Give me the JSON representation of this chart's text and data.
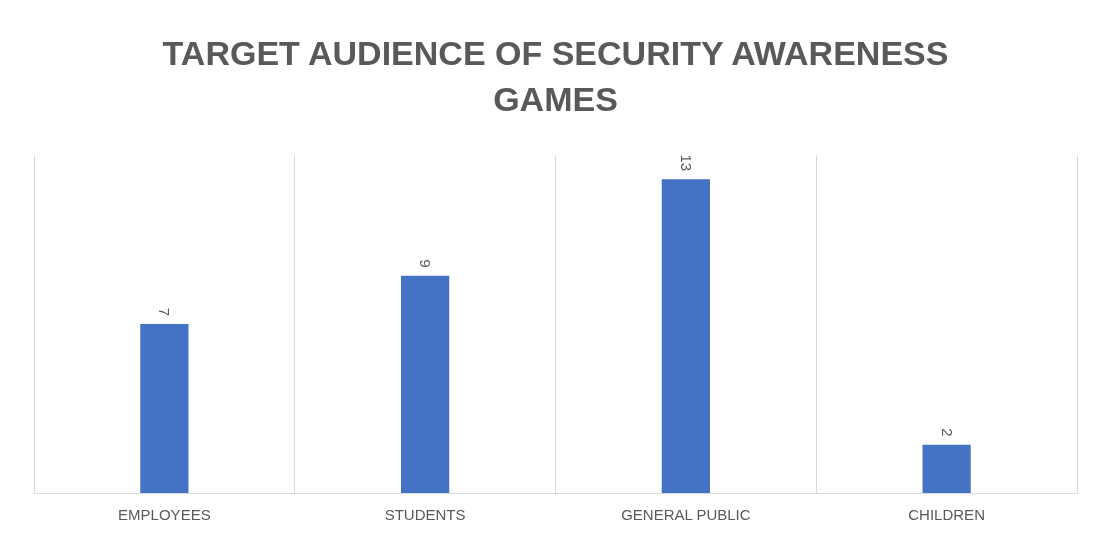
{
  "chart_data": {
    "type": "bar",
    "title": "TARGET AUDIENCE OF SECURITY AWARENESS GAMES",
    "categories": [
      "EMPLOYEES",
      "STUDENTS",
      "GENERAL PUBLIC",
      "CHILDREN"
    ],
    "values": [
      7,
      9,
      13,
      2
    ],
    "color": "#4472c4",
    "ylim": [
      0,
      14
    ],
    "data_labels": true,
    "grid": "x"
  }
}
